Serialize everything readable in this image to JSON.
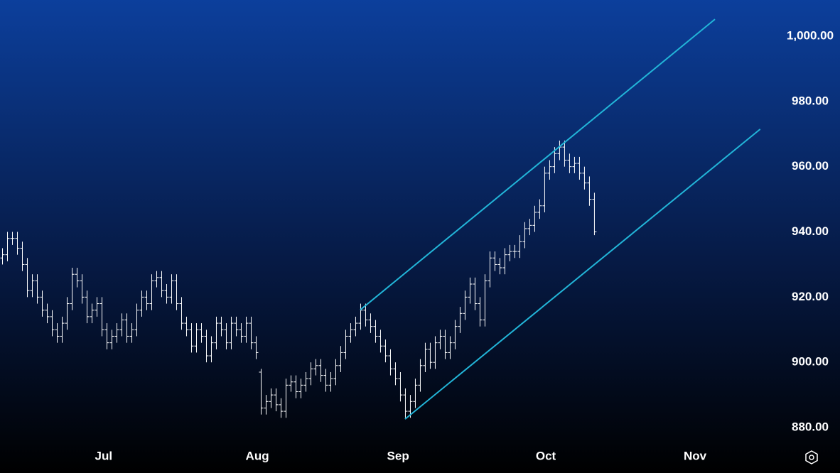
{
  "chart_data": {
    "type": "ohlc",
    "bar_color": "#ffffff",
    "ohlc": [
      [
        932,
        935,
        930,
        933
      ],
      [
        933,
        940,
        931,
        938
      ],
      [
        938,
        940,
        936,
        938
      ],
      [
        938,
        940,
        933,
        935
      ],
      [
        935,
        937,
        928,
        930
      ],
      [
        930,
        932,
        920,
        922
      ],
      [
        922,
        927,
        920,
        925
      ],
      [
        925,
        927,
        918,
        920
      ],
      [
        920,
        922,
        914,
        916
      ],
      [
        916,
        918,
        912,
        914
      ],
      [
        914,
        916,
        908,
        910
      ],
      [
        910,
        912,
        906,
        908
      ],
      [
        908,
        914,
        906,
        912
      ],
      [
        912,
        920,
        910,
        918
      ],
      [
        918,
        929,
        916,
        927
      ],
      [
        927,
        929,
        923,
        925
      ],
      [
        925,
        927,
        918,
        920
      ],
      [
        920,
        922,
        912,
        914
      ],
      [
        914,
        918,
        912,
        916
      ],
      [
        916,
        920,
        914,
        918
      ],
      [
        918,
        920,
        908,
        910
      ],
      [
        910,
        912,
        904,
        906
      ],
      [
        906,
        910,
        904,
        908
      ],
      [
        908,
        912,
        906,
        910
      ],
      [
        910,
        915,
        908,
        913
      ],
      [
        913,
        915,
        906,
        908
      ],
      [
        908,
        912,
        906,
        910
      ],
      [
        910,
        918,
        908,
        916
      ],
      [
        916,
        922,
        914,
        920
      ],
      [
        920,
        922,
        916,
        918
      ],
      [
        918,
        927,
        916,
        925
      ],
      [
        925,
        928,
        923,
        926
      ],
      [
        926,
        928,
        920,
        922
      ],
      [
        922,
        924,
        918,
        920
      ],
      [
        920,
        927,
        918,
        925
      ],
      [
        925,
        927,
        916,
        918
      ],
      [
        918,
        920,
        910,
        912
      ],
      [
        912,
        914,
        908,
        910
      ],
      [
        910,
        912,
        903,
        905
      ],
      [
        905,
        912,
        903,
        910
      ],
      [
        910,
        912,
        906,
        908
      ],
      [
        908,
        910,
        900,
        902
      ],
      [
        902,
        908,
        900,
        906
      ],
      [
        906,
        914,
        904,
        912
      ],
      [
        912,
        914,
        908,
        910
      ],
      [
        910,
        912,
        904,
        906
      ],
      [
        906,
        914,
        904,
        912
      ],
      [
        912,
        914,
        908,
        910
      ],
      [
        910,
        912,
        906,
        908
      ],
      [
        908,
        914,
        906,
        912
      ],
      [
        912,
        914,
        904,
        906
      ],
      [
        906,
        908,
        901,
        903
      ],
      [
        897,
        898,
        884,
        886
      ],
      [
        886,
        890,
        884,
        888
      ],
      [
        888,
        892,
        886,
        890
      ],
      [
        890,
        892,
        885,
        887
      ],
      [
        887,
        889,
        883,
        885
      ],
      [
        885,
        895,
        883,
        893
      ],
      [
        893,
        896,
        891,
        894
      ],
      [
        894,
        896,
        889,
        891
      ],
      [
        891,
        895,
        889,
        893
      ],
      [
        893,
        897,
        891,
        895
      ],
      [
        895,
        900,
        893,
        898
      ],
      [
        898,
        901,
        896,
        899
      ],
      [
        899,
        901,
        894,
        896
      ],
      [
        896,
        898,
        891,
        893
      ],
      [
        893,
        897,
        891,
        895
      ],
      [
        895,
        901,
        893,
        899
      ],
      [
        899,
        905,
        897,
        903
      ],
      [
        903,
        910,
        901,
        908
      ],
      [
        908,
        912,
        906,
        910
      ],
      [
        910,
        914,
        908,
        912
      ],
      [
        912,
        918,
        910,
        916
      ],
      [
        916,
        918,
        911,
        913
      ],
      [
        913,
        915,
        909,
        911
      ],
      [
        911,
        913,
        906,
        908
      ],
      [
        908,
        910,
        903,
        905
      ],
      [
        905,
        907,
        900,
        902
      ],
      [
        902,
        904,
        896,
        898
      ],
      [
        898,
        900,
        893,
        895
      ],
      [
        895,
        897,
        888,
        890
      ],
      [
        890,
        892,
        883,
        885
      ],
      [
        885,
        890,
        883,
        888
      ],
      [
        888,
        895,
        886,
        893
      ],
      [
        893,
        901,
        891,
        899
      ],
      [
        899,
        906,
        897,
        904
      ],
      [
        904,
        906,
        898,
        900
      ],
      [
        900,
        908,
        898,
        906
      ],
      [
        906,
        910,
        904,
        908
      ],
      [
        908,
        910,
        901,
        903
      ],
      [
        903,
        908,
        901,
        906
      ],
      [
        906,
        913,
        904,
        911
      ],
      [
        911,
        917,
        909,
        915
      ],
      [
        915,
        922,
        913,
        920
      ],
      [
        920,
        926,
        918,
        924
      ],
      [
        924,
        926,
        916,
        918
      ],
      [
        918,
        920,
        911,
        913
      ],
      [
        913,
        927,
        911,
        925
      ],
      [
        925,
        934,
        923,
        932
      ],
      [
        932,
        934,
        928,
        930
      ],
      [
        930,
        932,
        927,
        929
      ],
      [
        929,
        935,
        927,
        933
      ],
      [
        933,
        936,
        931,
        934
      ],
      [
        934,
        936,
        932,
        934
      ],
      [
        934,
        939,
        932,
        937
      ],
      [
        937,
        943,
        935,
        941
      ],
      [
        941,
        944,
        939,
        942
      ],
      [
        942,
        948,
        940,
        946
      ],
      [
        946,
        950,
        944,
        948
      ],
      [
        948,
        960,
        946,
        958
      ],
      [
        958,
        962,
        956,
        960
      ],
      [
        960,
        966,
        958,
        964
      ],
      [
        964,
        968,
        962,
        966
      ],
      [
        966,
        968,
        960,
        962
      ],
      [
        962,
        964,
        958,
        960
      ],
      [
        960,
        963,
        958,
        961
      ],
      [
        961,
        963,
        956,
        958
      ],
      [
        958,
        960,
        953,
        955
      ],
      [
        955,
        957,
        948,
        950
      ],
      [
        950,
        952,
        939,
        940
      ]
    ],
    "xlim": [
      -0.43,
      155.3
    ],
    "xticks": [
      {
        "value": 20.4,
        "label": "Jul"
      },
      {
        "value": 51.3,
        "label": "Aug"
      },
      {
        "value": 79.6,
        "label": "Sep"
      },
      {
        "value": 109.3,
        "label": "Oct"
      },
      {
        "value": 139.3,
        "label": "Nov"
      }
    ],
    "ylim": [
      875,
      1011.1
    ],
    "yticks": [
      {
        "value": 880,
        "label": "880.00"
      },
      {
        "value": 900,
        "label": "900.00"
      },
      {
        "value": 920,
        "label": "920.00"
      },
      {
        "value": 940,
        "label": "940.00"
      },
      {
        "value": 960,
        "label": "960.00"
      },
      {
        "value": 980,
        "label": "980.00"
      },
      {
        "value": 1000,
        "label": "1,000.00"
      }
    ],
    "trend_lines": [
      {
        "color": "#22b5d8",
        "points": [
          [
            72.0,
            916.1
          ],
          [
            143.3,
            1005.2
          ]
        ]
      },
      {
        "color": "#22b5d8",
        "points": [
          [
            81.0,
            882.6
          ],
          [
            152.4,
            971.5
          ]
        ]
      }
    ]
  }
}
